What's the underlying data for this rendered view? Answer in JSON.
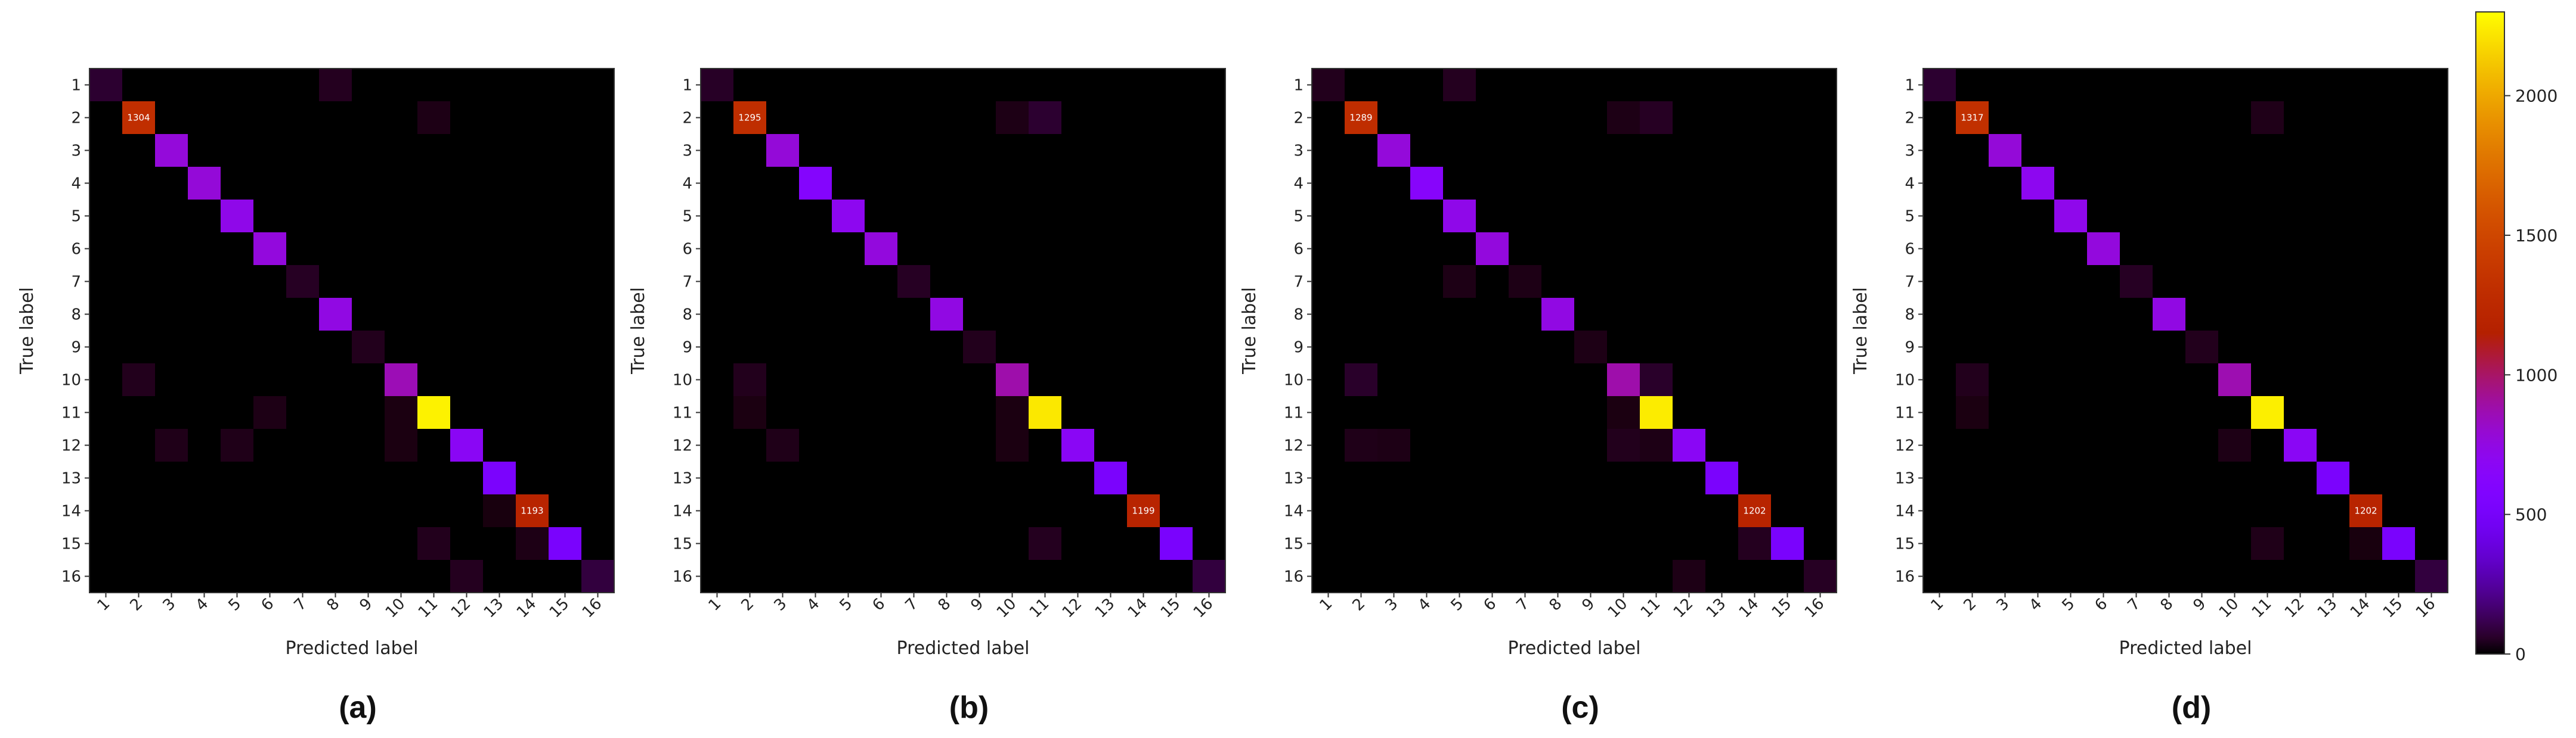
{
  "chart_data": [
    {
      "type": "heatmap",
      "panel_label": "(a)",
      "xlabel": "Predicted label",
      "ylabel": "True label",
      "labels": [
        "1",
        "2",
        "3",
        "4",
        "5",
        "6",
        "7",
        "8",
        "9",
        "10",
        "11",
        "12",
        "13",
        "14",
        "15",
        "16"
      ],
      "diagonal": [
        70,
        1304,
        775,
        780,
        727,
        766,
        50,
        747,
        40,
        860,
        2260,
        676,
        535,
        1193,
        528,
        90
      ],
      "diagonal_labels": {
        "2": "1304",
        "14": "1193"
      },
      "off_diagonal": [
        {
          "row": 1,
          "col": 8,
          "value": 45
        },
        {
          "row": 2,
          "col": 11,
          "value": 30
        },
        {
          "row": 10,
          "col": 2,
          "value": 40
        },
        {
          "row": 11,
          "col": 6,
          "value": 30
        },
        {
          "row": 11,
          "col": 10,
          "value": 25
        },
        {
          "row": 12,
          "col": 3,
          "value": 35
        },
        {
          "row": 12,
          "col": 5,
          "value": 35
        },
        {
          "row": 12,
          "col": 10,
          "value": 25
        },
        {
          "row": 14,
          "col": 13,
          "value": 20
        },
        {
          "row": 15,
          "col": 11,
          "value": 40
        },
        {
          "row": 15,
          "col": 14,
          "value": 30
        },
        {
          "row": 16,
          "col": 12,
          "value": 45
        }
      ]
    },
    {
      "type": "heatmap",
      "panel_label": "(b)",
      "xlabel": "Predicted label",
      "ylabel": "True label",
      "labels": [
        "1",
        "2",
        "3",
        "4",
        "5",
        "6",
        "7",
        "8",
        "9",
        "10",
        "11",
        "12",
        "13",
        "14",
        "15",
        "16"
      ],
      "diagonal": [
        55,
        1295,
        780,
        620,
        700,
        766,
        50,
        747,
        40,
        880,
        2230,
        676,
        535,
        1199,
        528,
        90
      ],
      "diagonal_labels": {
        "2": "1295",
        "14": "1199"
      },
      "off_diagonal": [
        {
          "row": 2,
          "col": 10,
          "value": 30
        },
        {
          "row": 2,
          "col": 11,
          "value": 70
        },
        {
          "row": 10,
          "col": 2,
          "value": 40
        },
        {
          "row": 11,
          "col": 2,
          "value": 25
        },
        {
          "row": 11,
          "col": 10,
          "value": 25
        },
        {
          "row": 12,
          "col": 3,
          "value": 35
        },
        {
          "row": 12,
          "col": 10,
          "value": 25
        },
        {
          "row": 15,
          "col": 11,
          "value": 45
        }
      ]
    },
    {
      "type": "heatmap",
      "panel_label": "(c)",
      "xlabel": "Predicted label",
      "ylabel": "True label",
      "labels": [
        "1",
        "2",
        "3",
        "4",
        "5",
        "6",
        "7",
        "8",
        "9",
        "10",
        "11",
        "12",
        "13",
        "14",
        "15",
        "16"
      ],
      "diagonal": [
        40,
        1289,
        775,
        640,
        727,
        766,
        30,
        747,
        30,
        880,
        2240,
        676,
        535,
        1202,
        528,
        50
      ],
      "diagonal_labels": {
        "2": "1289",
        "14": "1202"
      },
      "off_diagonal": [
        {
          "row": 1,
          "col": 5,
          "value": 45
        },
        {
          "row": 2,
          "col": 10,
          "value": 30
        },
        {
          "row": 2,
          "col": 11,
          "value": 50
        },
        {
          "row": 7,
          "col": 5,
          "value": 30
        },
        {
          "row": 10,
          "col": 2,
          "value": 60
        },
        {
          "row": 10,
          "col": 11,
          "value": 60
        },
        {
          "row": 11,
          "col": 10,
          "value": 25
        },
        {
          "row": 12,
          "col": 2,
          "value": 35
        },
        {
          "row": 12,
          "col": 3,
          "value": 30
        },
        {
          "row": 12,
          "col": 10,
          "value": 40
        },
        {
          "row": 12,
          "col": 11,
          "value": 30
        },
        {
          "row": 15,
          "col": 14,
          "value": 45
        },
        {
          "row": 16,
          "col": 12,
          "value": 30
        }
      ]
    },
    {
      "type": "heatmap",
      "panel_label": "(d)",
      "xlabel": "Predicted label",
      "ylabel": "True label",
      "labels": [
        "1",
        "2",
        "3",
        "4",
        "5",
        "6",
        "7",
        "8",
        "9",
        "10",
        "11",
        "12",
        "13",
        "14",
        "15",
        "16"
      ],
      "diagonal": [
        70,
        1317,
        780,
        700,
        720,
        766,
        50,
        747,
        40,
        870,
        2250,
        676,
        535,
        1202,
        528,
        90
      ],
      "diagonal_labels": {
        "2": "1317",
        "14": "1202"
      },
      "off_diagonal": [
        {
          "row": 2,
          "col": 11,
          "value": 35
        },
        {
          "row": 10,
          "col": 2,
          "value": 40
        },
        {
          "row": 11,
          "col": 2,
          "value": 25
        },
        {
          "row": 12,
          "col": 10,
          "value": 30
        },
        {
          "row": 15,
          "col": 11,
          "value": 35
        },
        {
          "row": 15,
          "col": 14,
          "value": 20
        }
      ]
    }
  ],
  "colorbar": {
    "colormap": "gnuplot",
    "min": 0,
    "max": 2300,
    "ticks": [
      0,
      500,
      1000,
      1500,
      2000
    ]
  }
}
